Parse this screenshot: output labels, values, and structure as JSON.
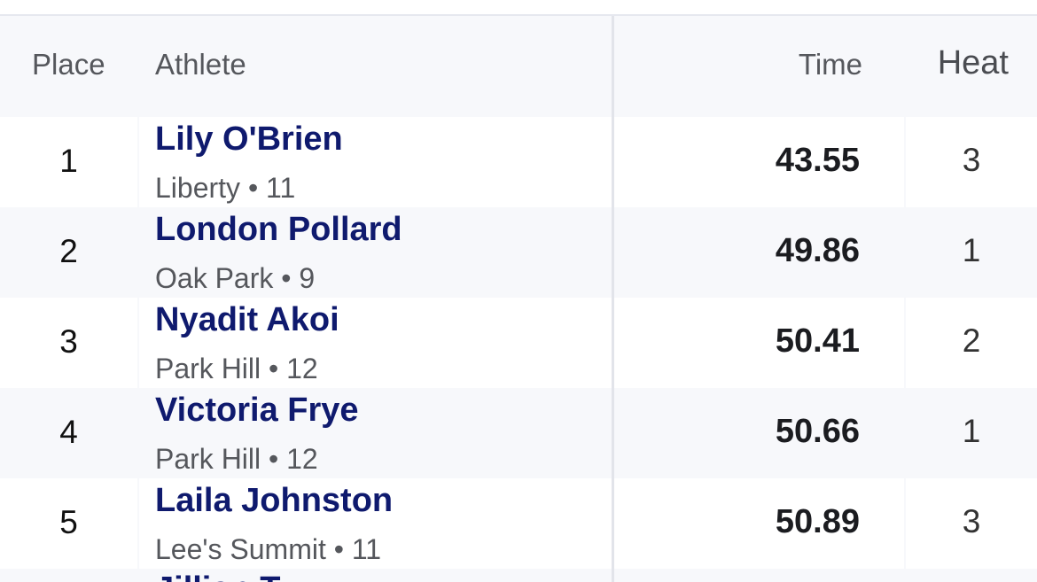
{
  "header": {
    "place": "Place",
    "athlete": "Athlete",
    "time": "Time",
    "heat": "Heat"
  },
  "rows": [
    {
      "place": "1",
      "name": "Lily O'Brien",
      "meta": "Liberty • 11",
      "time": "43.55",
      "heat": "3"
    },
    {
      "place": "2",
      "name": "London Pollard",
      "meta": "Oak Park • 9",
      "time": "49.86",
      "heat": "1"
    },
    {
      "place": "3",
      "name": "Nyadit Akoi",
      "meta": "Park Hill • 12",
      "time": "50.41",
      "heat": "2"
    },
    {
      "place": "4",
      "name": "Victoria Frye",
      "meta": "Park Hill • 12",
      "time": "50.66",
      "heat": "1"
    },
    {
      "place": "5",
      "name": "Laila Johnston",
      "meta": "Lee's Summit • 11",
      "time": "50.89",
      "heat": "3"
    }
  ],
  "partial_row": {
    "name": "Jillian T..."
  }
}
